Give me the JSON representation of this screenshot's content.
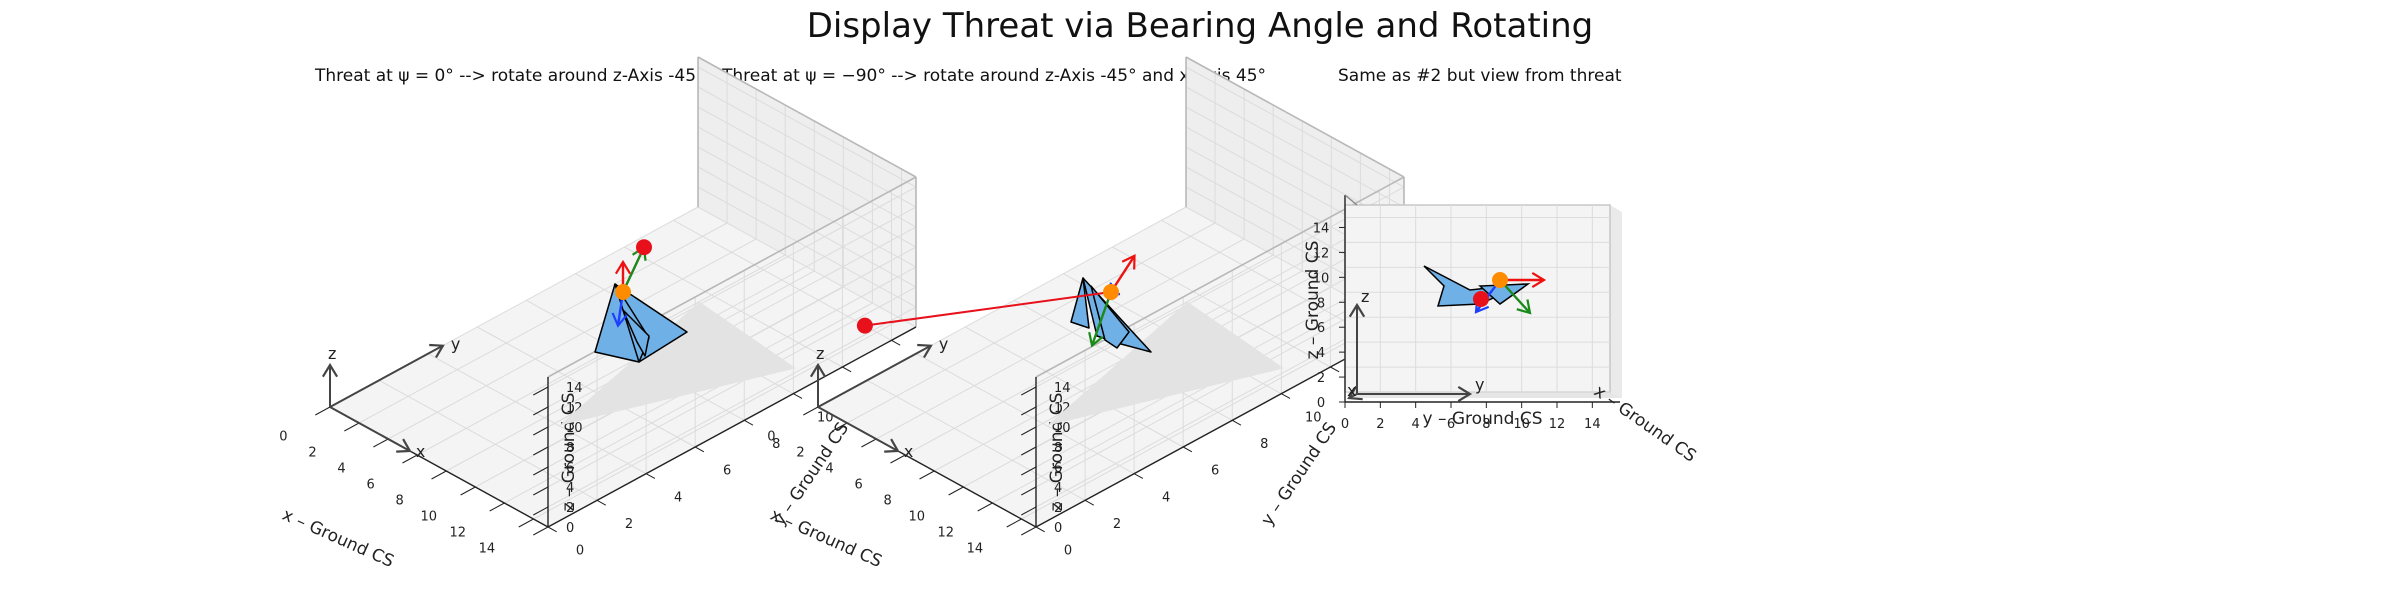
{
  "title": "Display Threat via Bearing Angle and Rotating",
  "subtitles": [
    "Threat at ψ = 0° --> rotate around z-Axis -45°",
    "Threat at ψ = −90° --> rotate around z-Axis -45° and x-Axis 45°",
    "Same as #2 but view from threat"
  ],
  "colors": {
    "aircraft_fill": "#6fb0e6",
    "aircraft_edge": "#000000",
    "shadow": "#e3e3e3",
    "pane": "#f2f2f2",
    "grid": "#dcdcdc",
    "threat_point": "#e8101b",
    "origin_point": "#ff8c00",
    "vector_x": "#1f3fff",
    "vector_y": "#1a8a1a",
    "vector_z": "#ee1111",
    "frame_axes": "#444444"
  },
  "chart_data": [
    {
      "type": "scatter",
      "projection": "3d",
      "title": "Threat at ψ = 0° --> rotate around z-Axis -45°",
      "xlabel": "x – Ground CS",
      "ylabel": "y – Ground CS",
      "zlabel": "z – Ground CS",
      "xlim": [
        0,
        15
      ],
      "ylim": [
        0,
        15
      ],
      "zlim": [
        0,
        15
      ],
      "xticks": [
        "0",
        "2",
        "4",
        "6",
        "8",
        "10",
        "12",
        "14"
      ],
      "yticks": [
        "0",
        "2",
        "4",
        "6",
        "8",
        "10",
        "12",
        "14"
      ],
      "zticks": [
        "0",
        "2",
        "4",
        "6",
        "8",
        "10",
        "12",
        "14"
      ],
      "grid": true,
      "frame_labels": [
        "x",
        "y",
        "z"
      ],
      "origin_point": [
        7.5,
        7.5,
        7.5
      ],
      "threat_point": [
        5.4,
        9.6,
        7.5
      ],
      "vectors": [
        {
          "color": "x",
          "to": [
            8.0,
            7.0,
            5.2
          ]
        },
        {
          "color": "y",
          "to": [
            5.4,
            9.6,
            7.5
          ]
        },
        {
          "color": "z",
          "to": [
            7.5,
            7.5,
            10.5
          ]
        }
      ]
    },
    {
      "type": "scatter",
      "projection": "3d",
      "title": "Threat at ψ = −90° --> rotate around z-Axis -45° and x-Axis 45°",
      "xlabel": "x – Ground CS",
      "ylabel": "y – Ground CS",
      "zlabel": "z – Ground CS",
      "xlim": [
        0,
        15
      ],
      "ylim": [
        0,
        15
      ],
      "zlim": [
        0,
        15
      ],
      "xticks": [
        "0",
        "2",
        "4",
        "6",
        "8",
        "10",
        "12",
        "14"
      ],
      "yticks": [
        "0",
        "2",
        "4",
        "6",
        "8",
        "10",
        "12",
        "14"
      ],
      "zticks": [
        "0",
        "2",
        "4",
        "6",
        "8",
        "10",
        "12",
        "14"
      ],
      "grid": true,
      "frame_labels": [
        "x",
        "y",
        "z"
      ],
      "origin_point": [
        7.5,
        7.5,
        7.5
      ],
      "threat_point": [
        1.2,
        1.2,
        7.5
      ],
      "vectors": [
        {
          "color": "x",
          "to": [
            6.0,
            8.2,
            5.0
          ]
        },
        {
          "color": "y",
          "to": [
            9.4,
            5.6,
            6.2
          ]
        },
        {
          "color": "z",
          "to": [
            7.6,
            8.4,
            10.0
          ]
        }
      ]
    },
    {
      "type": "scatter",
      "projection": "3d",
      "title": "Same as #2 but view from threat",
      "xlabel": "x – Ground CS",
      "ylabel": "y – Ground CS",
      "zlabel": "z – Ground CS",
      "xlim": [
        0,
        15
      ],
      "ylim": [
        0,
        15
      ],
      "zlim": [
        0,
        15
      ],
      "yticks": [
        "0",
        "2",
        "4",
        "6",
        "8",
        "10",
        "12",
        "14"
      ],
      "zticks": [
        "0",
        "2",
        "4",
        "6",
        "8",
        "10",
        "12",
        "14"
      ],
      "grid": true,
      "frame_labels": [
        "x",
        "y",
        "z"
      ],
      "origin_point": [
        7.5,
        7.5,
        7.5
      ],
      "threat_point": [
        6.5,
        6.5,
        6.8
      ],
      "vectors": [
        {
          "color": "x",
          "to": [
            6.8,
            7.0,
            6.2
          ]
        },
        {
          "color": "y",
          "to": [
            9.5,
            7.5,
            6.2
          ]
        },
        {
          "color": "z",
          "to": [
            10.0,
            7.5,
            7.7
          ]
        }
      ]
    }
  ]
}
